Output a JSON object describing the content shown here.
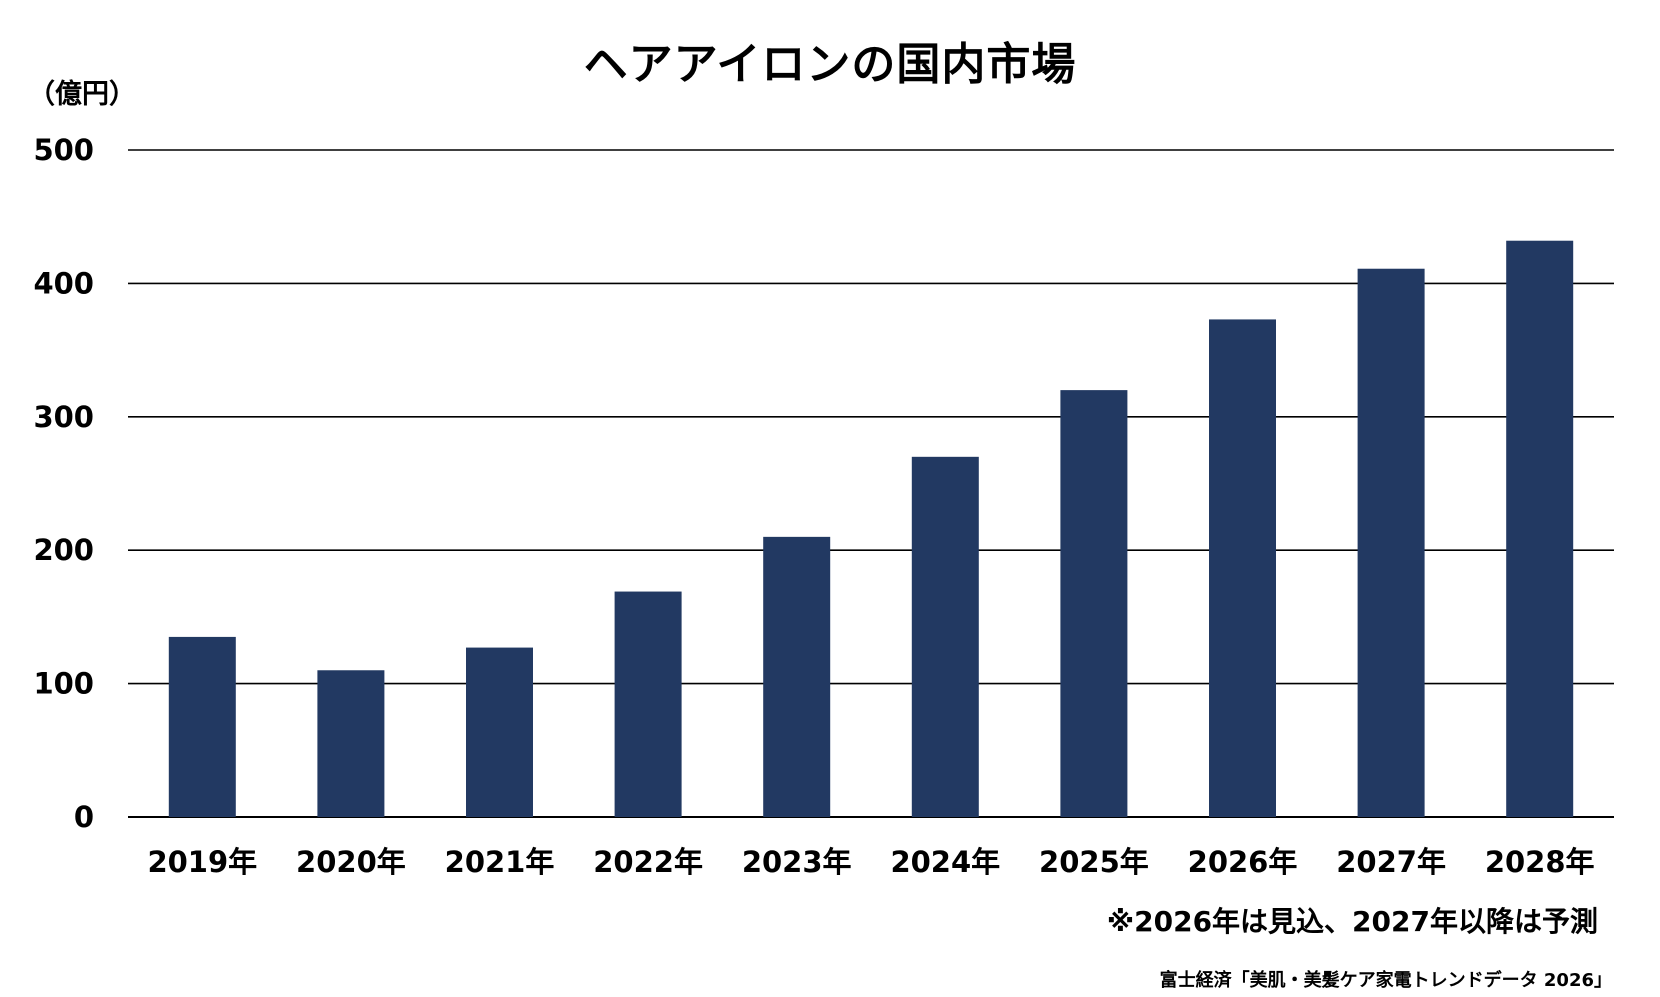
{
  "chart_data": {
    "type": "bar",
    "title": "ヘアアイロンの国内市場",
    "ylabel": "（億円）",
    "xlabel": "",
    "categories": [
      "2019年",
      "2020年",
      "2021年",
      "2022年",
      "2023年",
      "2024年",
      "2025年",
      "2026年",
      "2027年",
      "2028年"
    ],
    "values": [
      135,
      110,
      127,
      169,
      210,
      270,
      320,
      373,
      411,
      432
    ],
    "ylim": [
      0,
      500
    ],
    "yticks": [
      0,
      100,
      200,
      300,
      400,
      500
    ],
    "grid": true,
    "bar_color": "#223962"
  },
  "note": "※2026年は見込、2027年以降は予測",
  "source": "富士経済「美肌・美髪ケア家電トレンドデータ 2026」"
}
